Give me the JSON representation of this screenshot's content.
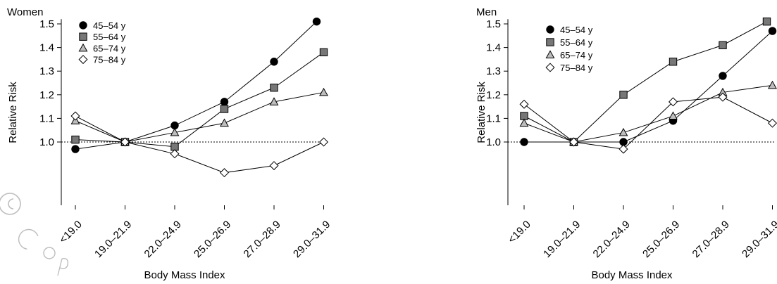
{
  "colors": {
    "filled_black": "#000000",
    "filled_gray": "#777777",
    "light_gray": "#bdbdbd",
    "open": "#ffffff"
  },
  "chart_data": [
    {
      "type": "line",
      "title": "Women",
      "xlabel": "Body Mass Index",
      "ylabel": "Relative Risk",
      "ylim": [
        0.55,
        1.52
      ],
      "yticks": [
        "1.0",
        "1.1",
        "1.2",
        "1.3",
        "1.4",
        "1.5"
      ],
      "categories": [
        "<19.0",
        "19.0–21.9",
        "22.0–24.9",
        "25.0–26.9",
        "27.0–28.9",
        "29.0–31.9"
      ],
      "reference_line": 1.0,
      "grid": false,
      "legend_position": "top-left",
      "series": [
        {
          "name": "45–54 y",
          "marker": "circle",
          "color": "#000000",
          "values": [
            0.97,
            1.0,
            1.07,
            1.17,
            1.34,
            1.51
          ]
        },
        {
          "name": "55–64 y",
          "marker": "square",
          "color": "#777777",
          "values": [
            1.01,
            1.0,
            0.98,
            1.14,
            1.23,
            1.38
          ]
        },
        {
          "name": "65–74 y",
          "marker": "triangle",
          "color": "#bdbdbd",
          "values": [
            1.09,
            1.0,
            1.04,
            1.08,
            1.17,
            1.21
          ]
        },
        {
          "name": "75–84 y",
          "marker": "diamond",
          "color": "#ffffff",
          "values": [
            1.11,
            1.0,
            0.95,
            0.87,
            0.9,
            1.0
          ]
        }
      ]
    },
    {
      "type": "line",
      "title": "Men",
      "xlabel": "Body Mass Index",
      "ylabel": "Relative Risk",
      "ylim": [
        0.55,
        1.52
      ],
      "yticks": [
        "1.0",
        "1.1",
        "1.2",
        "1.3",
        "1.4",
        "1.5"
      ],
      "categories": [
        "<19.0",
        "19.0–21.9",
        "22.0–24.9",
        "25.0–26.9",
        "27.0–28.9",
        "29.0–31.9"
      ],
      "reference_line": 1.0,
      "grid": false,
      "legend_position": "top-left",
      "series": [
        {
          "name": "45–54 y",
          "marker": "circle",
          "color": "#000000",
          "values": [
            1.0,
            1.0,
            1.0,
            1.09,
            1.28,
            1.47
          ]
        },
        {
          "name": "55–64 y",
          "marker": "square",
          "color": "#777777",
          "values": [
            1.11,
            1.0,
            1.2,
            1.34,
            1.41,
            1.51
          ]
        },
        {
          "name": "65–74 y",
          "marker": "triangle",
          "color": "#bdbdbd",
          "values": [
            1.08,
            1.0,
            1.04,
            1.11,
            1.21,
            1.24
          ]
        },
        {
          "name": "75–84 y",
          "marker": "diamond",
          "color": "#ffffff",
          "values": [
            1.16,
            1.0,
            0.97,
            1.17,
            1.19,
            1.08
          ]
        }
      ]
    }
  ]
}
